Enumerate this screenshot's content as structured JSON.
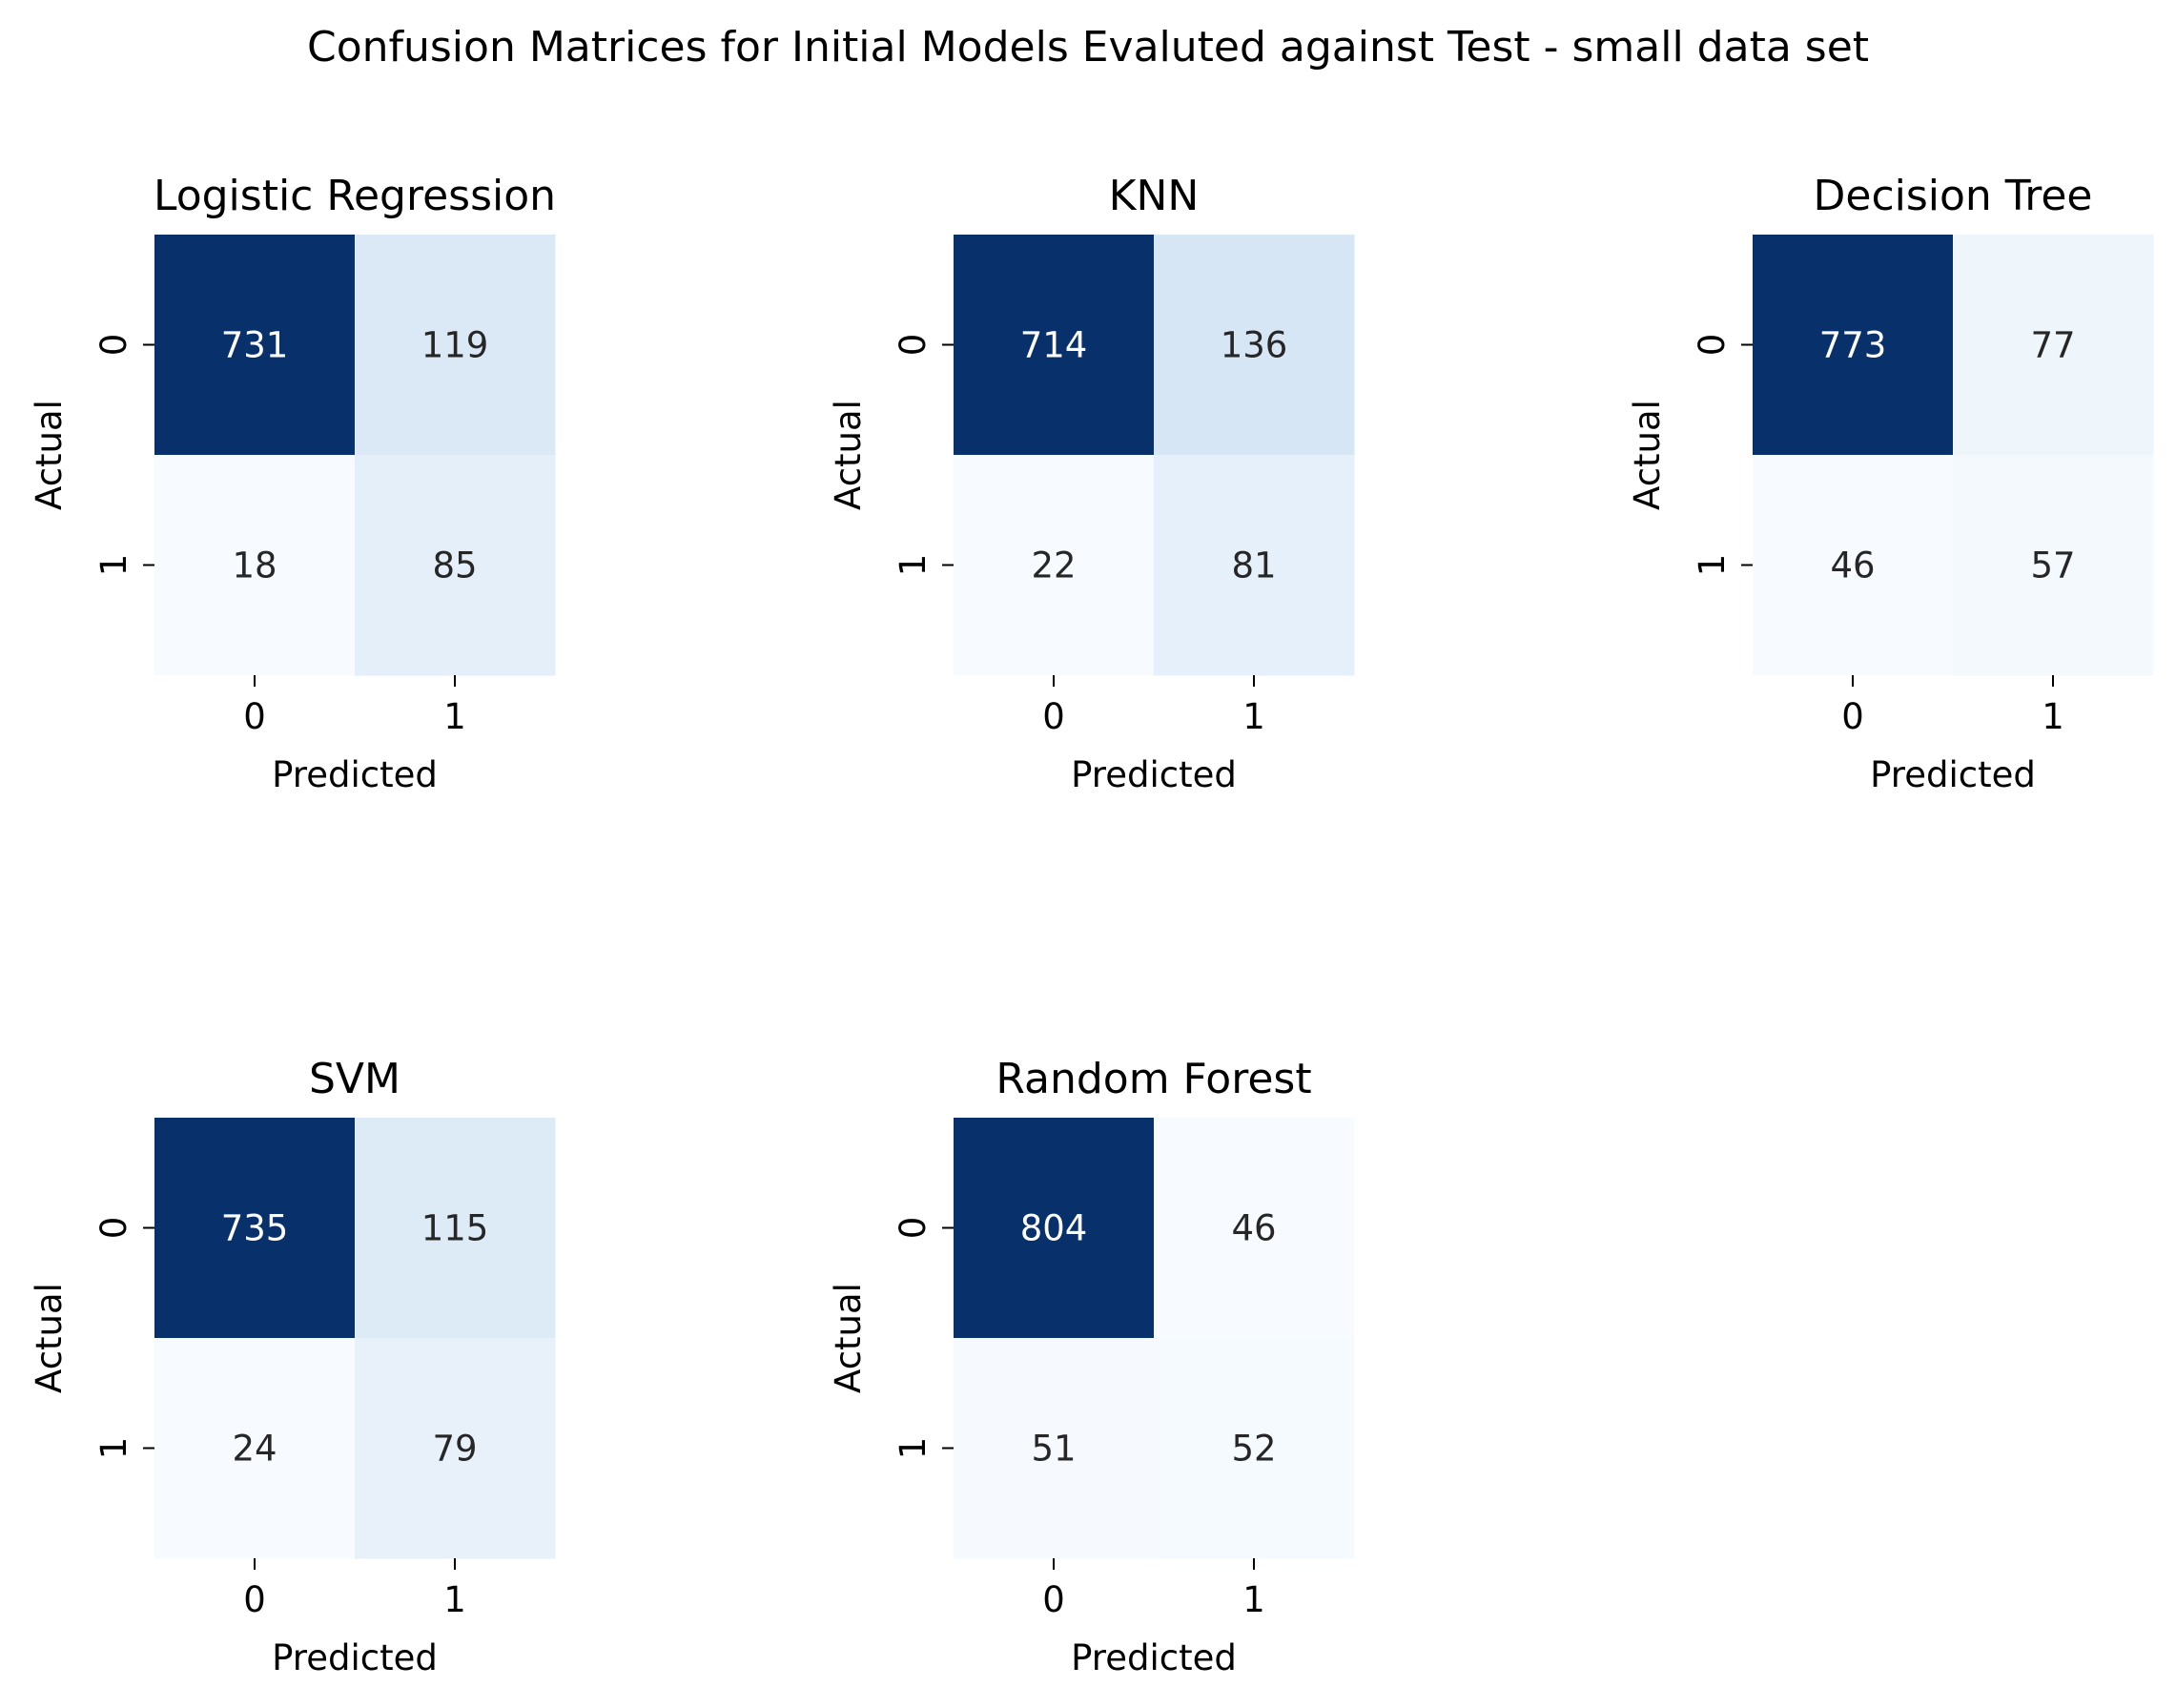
{
  "figure": {
    "title": "Confusion Matrices for Initial Models Evaluted against Test - small data set"
  },
  "chart_data": [
    {
      "type": "heatmap",
      "title": "Logistic Regression",
      "xlabel": "Predicted",
      "ylabel": "Actual",
      "x_categories": [
        "0",
        "1"
      ],
      "y_categories": [
        "0",
        "1"
      ],
      "values": [
        [
          731,
          119
        ],
        [
          18,
          85
        ]
      ],
      "colormap": "Blues"
    },
    {
      "type": "heatmap",
      "title": "KNN",
      "xlabel": "Predicted",
      "ylabel": "Actual",
      "x_categories": [
        "0",
        "1"
      ],
      "y_categories": [
        "0",
        "1"
      ],
      "values": [
        [
          714,
          136
        ],
        [
          22,
          81
        ]
      ],
      "colormap": "Blues"
    },
    {
      "type": "heatmap",
      "title": "Decision Tree",
      "xlabel": "Predicted",
      "ylabel": "Actual",
      "x_categories": [
        "0",
        "1"
      ],
      "y_categories": [
        "0",
        "1"
      ],
      "values": [
        [
          773,
          77
        ],
        [
          46,
          57
        ]
      ],
      "colormap": "Blues"
    },
    {
      "type": "heatmap",
      "title": "SVM",
      "xlabel": "Predicted",
      "ylabel": "Actual",
      "x_categories": [
        "0",
        "1"
      ],
      "y_categories": [
        "0",
        "1"
      ],
      "values": [
        [
          735,
          115
        ],
        [
          24,
          79
        ]
      ],
      "colormap": "Blues"
    },
    {
      "type": "heatmap",
      "title": "Random Forest",
      "xlabel": "Predicted",
      "ylabel": "Actual",
      "x_categories": [
        "0",
        "1"
      ],
      "y_categories": [
        "0",
        "1"
      ],
      "values": [
        [
          804,
          46
        ],
        [
          51,
          52
        ]
      ],
      "colormap": "Blues"
    }
  ]
}
